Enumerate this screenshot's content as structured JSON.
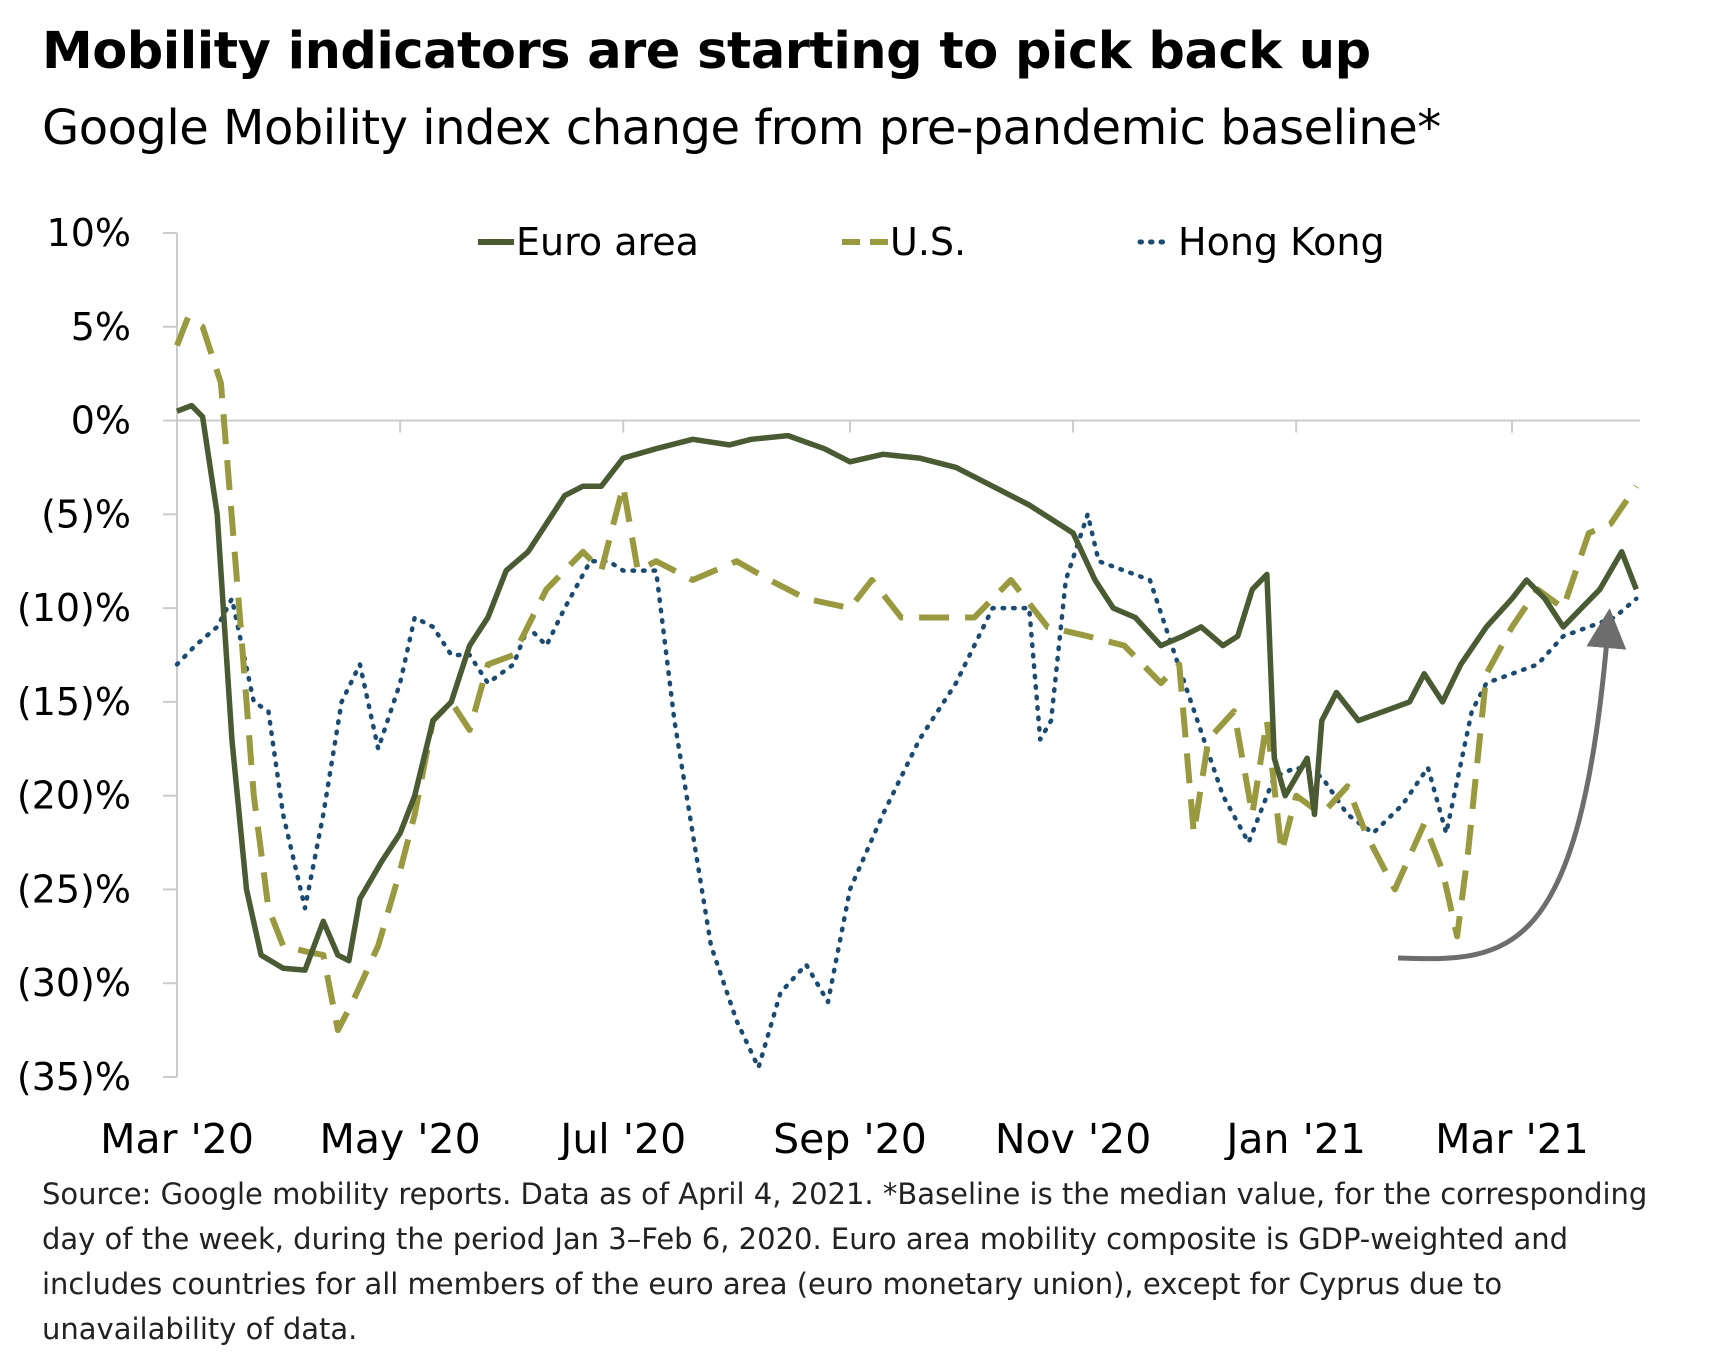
{
  "title": "Mobility indicators are starting to pick back up",
  "subtitle": "Google Mobility index change from pre-pandemic baseline*",
  "source": "Source: Google mobility reports. Data as of April 4, 2021. *Baseline is the median value, for the corresponding day of the week, during the period Jan 3–Feb 6, 2020. Euro area mobility composite is GDP-weighted and includes countries for all members of the euro area (euro monetary union), except for Cyprus due to unavailability of data.",
  "chart_data": {
    "type": "line",
    "title": "Mobility indicators are starting to pick back up",
    "subtitle": "Google Mobility index change from pre-pandemic baseline*",
    "xlabel": "",
    "ylabel": "",
    "x_range": [
      "2020-03-01",
      "2021-04-05"
    ],
    "ylim": [
      -35,
      10
    ],
    "y_ticks": [
      10,
      5,
      0,
      -5,
      -10,
      -15,
      -20,
      -25,
      -30,
      -35
    ],
    "y_tick_labels": [
      "10%",
      "5%",
      "0%",
      "(5)%",
      "(10)%",
      "(15)%",
      "(20)%",
      "(25)%",
      "(30)%",
      "(35)%"
    ],
    "x_ticks": [
      "2020-03-01",
      "2020-05-01",
      "2020-07-01",
      "2020-09-01",
      "2020-11-01",
      "2021-01-01",
      "2021-03-01"
    ],
    "x_tick_labels": [
      "Mar '20",
      "May '20",
      "Jul '20",
      "Sep '20",
      "Nov '20",
      "Jan '21",
      "Mar '21"
    ],
    "grid": false,
    "legend_position": "top",
    "annotation": "upward arrow near end",
    "series": [
      {
        "name": "Euro area",
        "color": "#4a5a33",
        "style": "solid",
        "points": [
          [
            "2020-03-01",
            0.5
          ],
          [
            "2020-03-05",
            0.8
          ],
          [
            "2020-03-08",
            0.2
          ],
          [
            "2020-03-12",
            -5
          ],
          [
            "2020-03-16",
            -17
          ],
          [
            "2020-03-20",
            -25
          ],
          [
            "2020-03-24",
            -28.5
          ],
          [
            "2020-03-30",
            -29.2
          ],
          [
            "2020-04-05",
            -29.3
          ],
          [
            "2020-04-10",
            -26.7
          ],
          [
            "2020-04-14",
            -28.5
          ],
          [
            "2020-04-17",
            -28.8
          ],
          [
            "2020-04-20",
            -25.5
          ],
          [
            "2020-04-26",
            -23.5
          ],
          [
            "2020-05-01",
            -22
          ],
          [
            "2020-05-05",
            -20
          ],
          [
            "2020-05-10",
            -16
          ],
          [
            "2020-05-15",
            -15
          ],
          [
            "2020-05-20",
            -12
          ],
          [
            "2020-05-25",
            -10.5
          ],
          [
            "2020-05-30",
            -8
          ],
          [
            "2020-06-05",
            -7
          ],
          [
            "2020-06-10",
            -5.5
          ],
          [
            "2020-06-15",
            -4
          ],
          [
            "2020-06-20",
            -3.5
          ],
          [
            "2020-06-25",
            -3.5
          ],
          [
            "2020-07-01",
            -2
          ],
          [
            "2020-07-10",
            -1.5
          ],
          [
            "2020-07-20",
            -1
          ],
          [
            "2020-07-30",
            -1.3
          ],
          [
            "2020-08-05",
            -1
          ],
          [
            "2020-08-15",
            -0.8
          ],
          [
            "2020-08-25",
            -1.5
          ],
          [
            "2020-09-01",
            -2.2
          ],
          [
            "2020-09-10",
            -1.8
          ],
          [
            "2020-09-20",
            -2
          ],
          [
            "2020-09-30",
            -2.5
          ],
          [
            "2020-10-10",
            -3.5
          ],
          [
            "2020-10-20",
            -4.5
          ],
          [
            "2020-10-28",
            -5.5
          ],
          [
            "2020-11-01",
            -6
          ],
          [
            "2020-11-07",
            -8.5
          ],
          [
            "2020-11-12",
            -10
          ],
          [
            "2020-11-18",
            -10.5
          ],
          [
            "2020-11-25",
            -12
          ],
          [
            "2020-12-01",
            -11.5
          ],
          [
            "2020-12-06",
            -11
          ],
          [
            "2020-12-12",
            -12
          ],
          [
            "2020-12-16",
            -11.5
          ],
          [
            "2020-12-20",
            -9
          ],
          [
            "2020-12-24",
            -8.2
          ],
          [
            "2020-12-26",
            -18
          ],
          [
            "2020-12-29",
            -20
          ],
          [
            "2021-01-01",
            -19
          ],
          [
            "2021-01-04",
            -18
          ],
          [
            "2021-01-06",
            -21
          ],
          [
            "2021-01-08",
            -16
          ],
          [
            "2021-01-12",
            -14.5
          ],
          [
            "2021-01-18",
            -16
          ],
          [
            "2021-01-25",
            -15.5
          ],
          [
            "2021-02-01",
            -15
          ],
          [
            "2021-02-05",
            -13.5
          ],
          [
            "2021-02-10",
            -15
          ],
          [
            "2021-02-15",
            -13
          ],
          [
            "2021-02-22",
            -11
          ],
          [
            "2021-03-01",
            -9.5
          ],
          [
            "2021-03-05",
            -8.5
          ],
          [
            "2021-03-10",
            -9.5
          ],
          [
            "2021-03-15",
            -11
          ],
          [
            "2021-03-20",
            -10
          ],
          [
            "2021-03-25",
            -9
          ],
          [
            "2021-03-31",
            -7
          ],
          [
            "2021-04-04",
            -9
          ]
        ]
      },
      {
        "name": "U.S.",
        "color": "#99993f",
        "style": "dashed",
        "points": [
          [
            "2020-03-01",
            4
          ],
          [
            "2020-03-04",
            5.5
          ],
          [
            "2020-03-08",
            5
          ],
          [
            "2020-03-13",
            2
          ],
          [
            "2020-03-18",
            -10
          ],
          [
            "2020-03-22",
            -20
          ],
          [
            "2020-03-26",
            -26
          ],
          [
            "2020-03-30",
            -28
          ],
          [
            "2020-04-05",
            -28.3
          ],
          [
            "2020-04-10",
            -28.5
          ],
          [
            "2020-04-14",
            -32.5
          ],
          [
            "2020-04-18",
            -31
          ],
          [
            "2020-04-25",
            -28
          ],
          [
            "2020-05-01",
            -24
          ],
          [
            "2020-05-05",
            -21
          ],
          [
            "2020-05-10",
            -16
          ],
          [
            "2020-05-15",
            -15
          ],
          [
            "2020-05-20",
            -16.5
          ],
          [
            "2020-05-25",
            -13
          ],
          [
            "2020-06-01",
            -12.5
          ],
          [
            "2020-06-10",
            -9
          ],
          [
            "2020-06-20",
            -7
          ],
          [
            "2020-06-25",
            -8
          ],
          [
            "2020-07-01",
            -3.5
          ],
          [
            "2020-07-05",
            -8
          ],
          [
            "2020-07-10",
            -7.5
          ],
          [
            "2020-07-20",
            -8.5
          ],
          [
            "2020-08-01",
            -7.5
          ],
          [
            "2020-08-10",
            -8.5
          ],
          [
            "2020-08-20",
            -9.5
          ],
          [
            "2020-09-01",
            -10
          ],
          [
            "2020-09-07",
            -8.5
          ],
          [
            "2020-09-15",
            -10.5
          ],
          [
            "2020-09-25",
            -10.5
          ],
          [
            "2020-10-05",
            -10.5
          ],
          [
            "2020-10-15",
            -8.5
          ],
          [
            "2020-10-25",
            -11
          ],
          [
            "2020-11-05",
            -11.5
          ],
          [
            "2020-11-15",
            -12
          ],
          [
            "2020-11-25",
            -14
          ],
          [
            "2020-11-30",
            -13
          ],
          [
            "2020-12-04",
            -22
          ],
          [
            "2020-12-08",
            -17
          ],
          [
            "2020-12-15",
            -15.5
          ],
          [
            "2020-12-20",
            -21
          ],
          [
            "2020-12-24",
            -16
          ],
          [
            "2020-12-28",
            -23
          ],
          [
            "2021-01-01",
            -20
          ],
          [
            "2021-01-08",
            -21
          ],
          [
            "2021-01-15",
            -19.5
          ],
          [
            "2021-01-20",
            -22
          ],
          [
            "2021-01-28",
            -25
          ],
          [
            "2021-02-05",
            -21.5
          ],
          [
            "2021-02-10",
            -24
          ],
          [
            "2021-02-14",
            -27.5
          ],
          [
            "2021-02-17",
            -23
          ],
          [
            "2021-02-22",
            -13.5
          ],
          [
            "2021-03-01",
            -11
          ],
          [
            "2021-03-08",
            -9
          ],
          [
            "2021-03-15",
            -10
          ],
          [
            "2021-03-22",
            -6
          ],
          [
            "2021-03-28",
            -5.5
          ],
          [
            "2021-04-04",
            -3.5
          ]
        ]
      },
      {
        "name": "Hong Kong",
        "color": "#1b4b72",
        "style": "dotted",
        "points": [
          [
            "2020-03-01",
            -13
          ],
          [
            "2020-03-06",
            -12
          ],
          [
            "2020-03-12",
            -11
          ],
          [
            "2020-03-16",
            -9.5
          ],
          [
            "2020-03-22",
            -15
          ],
          [
            "2020-03-26",
            -15.5
          ],
          [
            "2020-03-30",
            -21
          ],
          [
            "2020-04-05",
            -26
          ],
          [
            "2020-04-10",
            -21
          ],
          [
            "2020-04-15",
            -15
          ],
          [
            "2020-04-20",
            -13
          ],
          [
            "2020-04-25",
            -17.5
          ],
          [
            "2020-05-01",
            -14
          ],
          [
            "2020-05-05",
            -10.5
          ],
          [
            "2020-05-10",
            -11
          ],
          [
            "2020-05-15",
            -12.5
          ],
          [
            "2020-05-20",
            -12.5
          ],
          [
            "2020-05-25",
            -14
          ],
          [
            "2020-06-01",
            -13
          ],
          [
            "2020-06-05",
            -11
          ],
          [
            "2020-06-10",
            -12
          ],
          [
            "2020-06-15",
            -10
          ],
          [
            "2020-06-22",
            -7.5
          ],
          [
            "2020-06-27",
            -7.5
          ],
          [
            "2020-07-01",
            -8
          ],
          [
            "2020-07-10",
            -8
          ],
          [
            "2020-07-15",
            -16
          ],
          [
            "2020-07-25",
            -28
          ],
          [
            "2020-08-01",
            -32
          ],
          [
            "2020-08-07",
            -34.5
          ],
          [
            "2020-08-13",
            -30.5
          ],
          [
            "2020-08-20",
            -29
          ],
          [
            "2020-08-26",
            -31
          ],
          [
            "2020-09-01",
            -25
          ],
          [
            "2020-09-10",
            -21
          ],
          [
            "2020-09-20",
            -17
          ],
          [
            "2020-09-30",
            -14
          ],
          [
            "2020-10-10",
            -10
          ],
          [
            "2020-10-20",
            -10
          ],
          [
            "2020-10-23",
            -17
          ],
          [
            "2020-10-26",
            -16
          ],
          [
            "2020-10-30",
            -8.5
          ],
          [
            "2020-11-05",
            -5
          ],
          [
            "2020-11-08",
            -7.5
          ],
          [
            "2020-11-15",
            -8
          ],
          [
            "2020-11-22",
            -8.5
          ],
          [
            "2020-11-28",
            -12
          ],
          [
            "2020-12-05",
            -16
          ],
          [
            "2020-12-12",
            -20
          ],
          [
            "2020-12-19",
            -22.5
          ],
          [
            "2020-12-26",
            -19
          ],
          [
            "2021-01-01",
            -18.5
          ],
          [
            "2021-01-08",
            -19
          ],
          [
            "2021-01-15",
            -21
          ],
          [
            "2021-01-22",
            -22
          ],
          [
            "2021-01-30",
            -20.5
          ],
          [
            "2021-02-06",
            -18.5
          ],
          [
            "2021-02-11",
            -22
          ],
          [
            "2021-02-18",
            -15.5
          ],
          [
            "2021-02-22",
            -14
          ],
          [
            "2021-03-01",
            -13.5
          ],
          [
            "2021-03-08",
            -13
          ],
          [
            "2021-03-15",
            -11.5
          ],
          [
            "2021-03-22",
            -11
          ],
          [
            "2021-03-29",
            -10.5
          ],
          [
            "2021-04-04",
            -9.5
          ]
        ]
      }
    ]
  },
  "colors": {
    "axis": "#cccccc",
    "arrow": "#6d6d6d"
  }
}
